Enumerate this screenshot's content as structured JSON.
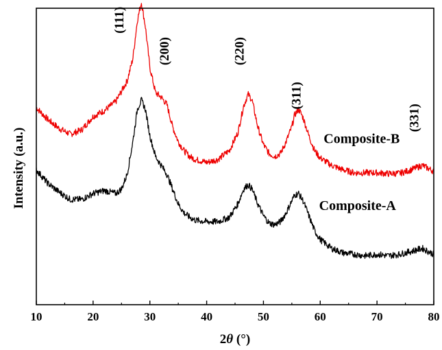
{
  "chart_data": {
    "type": "line",
    "title": "",
    "xlabel_prefix": "2",
    "xlabel_symbol": "θ",
    "xlabel_suffix": " (°)",
    "ylabel": "Intensity (a.u.)",
    "xlim": [
      10,
      80
    ],
    "ylim": [
      0,
      1
    ],
    "xticks": [
      10,
      20,
      30,
      40,
      50,
      60,
      70,
      80
    ],
    "grid": false,
    "y_tick_labels_shown": false,
    "series": [
      {
        "name": "Composite-B",
        "color": "#ee0000",
        "x": [
          10,
          12,
          14,
          16,
          18,
          20,
          22,
          24,
          25,
          26,
          27,
          27.8,
          28.5,
          29.2,
          30,
          31,
          32,
          33,
          34,
          35,
          36,
          37,
          38,
          40,
          42,
          44,
          45.5,
          46.5,
          47.3,
          48,
          49,
          50,
          51,
          52,
          53,
          54,
          55,
          55.5,
          56.2,
          57,
          58,
          59,
          60,
          62,
          64,
          66,
          68,
          70,
          72,
          74,
          76,
          78,
          80
        ],
        "y": [
          0.665,
          0.625,
          0.595,
          0.575,
          0.59,
          0.635,
          0.655,
          0.685,
          0.72,
          0.755,
          0.83,
          0.96,
          1.02,
          0.94,
          0.8,
          0.715,
          0.7,
          0.675,
          0.6,
          0.55,
          0.52,
          0.5,
          0.49,
          0.48,
          0.49,
          0.52,
          0.58,
          0.67,
          0.71,
          0.69,
          0.6,
          0.54,
          0.51,
          0.5,
          0.51,
          0.55,
          0.6,
          0.64,
          0.66,
          0.63,
          0.57,
          0.52,
          0.495,
          0.47,
          0.455,
          0.445,
          0.445,
          0.445,
          0.442,
          0.443,
          0.455,
          0.47,
          0.45
        ]
      },
      {
        "name": "Composite-A",
        "color": "#000000",
        "x": [
          10,
          12,
          14,
          16,
          18,
          20,
          22,
          24,
          25,
          26,
          27,
          27.8,
          28.5,
          29.2,
          30,
          31,
          32,
          33,
          34,
          35,
          36,
          37,
          38,
          40,
          42,
          44,
          45.5,
          46.5,
          47.3,
          48,
          49,
          50,
          51,
          52,
          53,
          54,
          55,
          55.5,
          56.2,
          57,
          58,
          59,
          60,
          62,
          64,
          66,
          68,
          70,
          72,
          74,
          76,
          78,
          80
        ],
        "y": [
          0.455,
          0.41,
          0.38,
          0.355,
          0.355,
          0.375,
          0.385,
          0.375,
          0.39,
          0.44,
          0.55,
          0.66,
          0.69,
          0.66,
          0.57,
          0.5,
          0.47,
          0.44,
          0.39,
          0.34,
          0.31,
          0.295,
          0.285,
          0.28,
          0.28,
          0.295,
          0.34,
          0.39,
          0.405,
          0.39,
          0.34,
          0.3,
          0.275,
          0.27,
          0.28,
          0.31,
          0.35,
          0.37,
          0.375,
          0.35,
          0.3,
          0.25,
          0.22,
          0.19,
          0.175,
          0.17,
          0.165,
          0.17,
          0.165,
          0.17,
          0.18,
          0.19,
          0.17
        ]
      }
    ],
    "annotations": [
      {
        "text": "(111)",
        "x": 25.3,
        "y": 0.96
      },
      {
        "text": "(200)",
        "x": 33.3,
        "y": 0.855
      },
      {
        "text": "(220)",
        "x": 46.5,
        "y": 0.855
      },
      {
        "text": "(311)",
        "x": 56.5,
        "y": 0.705
      },
      {
        "text": "(331)",
        "x": 77.3,
        "y": 0.63
      }
    ],
    "series_labels": [
      {
        "text": "Composite-B",
        "x": 60.6,
        "y": 0.545
      },
      {
        "text": "Composite-A",
        "x": 59.8,
        "y": 0.32
      }
    ]
  }
}
